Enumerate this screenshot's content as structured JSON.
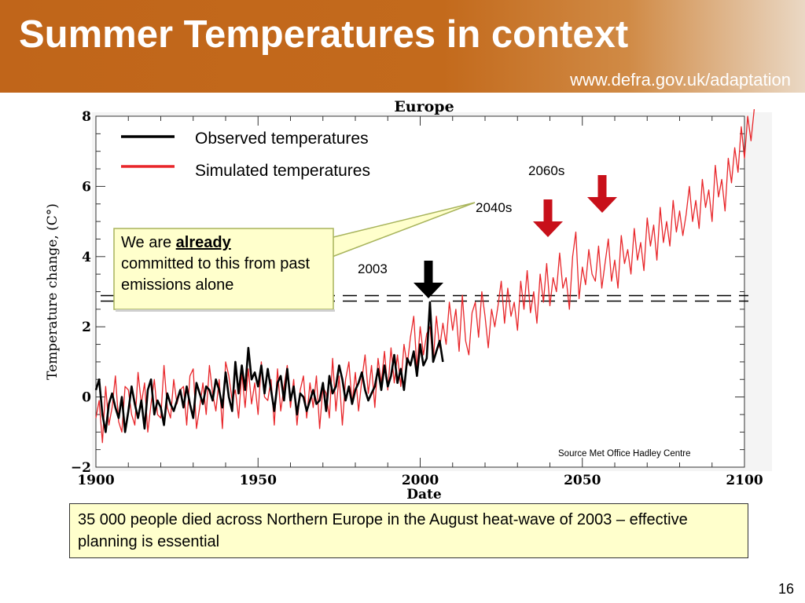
{
  "slide": {
    "title": "Summer Temperatures in context",
    "url": "www.defra.gov.uk/adaptation",
    "callout": {
      "prefix": "We are ",
      "emphasis": "already",
      "rest": "committed to this from past emissions alone"
    },
    "footer_note": "35 000 people died across Northern Europe in the August heat-wave of 2003 – effective planning is essential",
    "page_number": "16",
    "source": "Source Met Office Hadley Centre"
  },
  "colors": {
    "observed": "#000000",
    "simulated": "#e8262a",
    "arrow_red": "#c8101a",
    "header": "#c0651a"
  },
  "chart_data": {
    "type": "line",
    "title": "Europe",
    "xlabel": "Date",
    "ylabel": "Temperature change, (C°)",
    "xlim": [
      1900,
      2100
    ],
    "ylim": [
      -2,
      8
    ],
    "x_ticks": [
      1900,
      1950,
      2000,
      2050,
      2100
    ],
    "y_ticks": [
      -2,
      0,
      2,
      4,
      6,
      8
    ],
    "reference_line": {
      "style": "dashed",
      "y": 2.8
    },
    "legend": [
      "Observed temperatures",
      "Simulated temperatures"
    ],
    "annotations": [
      {
        "label": "2003",
        "x": 2003,
        "y": 2.7,
        "arrow": "black"
      },
      {
        "label": "2040s",
        "x": 2041,
        "y": 4.6,
        "arrow": "red"
      },
      {
        "label": "2060s",
        "x": 2057,
        "y": 5.6,
        "arrow": "red"
      }
    ],
    "series": [
      {
        "name": "Observed temperatures",
        "x_start": 1900,
        "x_step": 1,
        "values": [
          0.2,
          0.5,
          -0.5,
          -1.0,
          -0.2,
          0.1,
          -0.3,
          -0.6,
          0.0,
          -1.0,
          -0.4,
          0.3,
          -0.2,
          -0.6,
          -0.1,
          -0.9,
          0.2,
          0.5,
          -0.5,
          -0.1,
          -0.3,
          -0.8,
          0.1,
          -0.2,
          -0.4,
          -0.1,
          0.2,
          -0.3,
          0.3,
          -0.2,
          -0.6,
          0.4,
          0.1,
          -0.2,
          0.3,
          0.2,
          -0.1,
          0.5,
          0.2,
          -0.3,
          0.7,
          0.0,
          -0.4,
          1.0,
          0.1,
          0.9,
          0.2,
          1.4,
          0.5,
          0.7,
          0.3,
          0.9,
          0.1,
          0.8,
          0.2,
          -0.4,
          0.4,
          0.6,
          -0.1,
          0.8,
          -0.1,
          0.3,
          -0.5,
          0.1,
          0.0,
          -0.4,
          -0.1,
          0.2,
          -0.2,
          -0.1,
          0.4,
          -0.4,
          0.6,
          0.1,
          0.3,
          0.9,
          0.5,
          -0.1,
          0.3,
          -0.2,
          0.2,
          0.4,
          0.7,
          0.2,
          -0.1,
          0.1,
          0.3,
          0.8,
          0.2,
          0.9,
          0.3,
          0.6,
          1.2,
          0.4,
          0.8,
          0.2,
          1.1,
          0.9,
          1.3,
          0.6,
          1.5,
          0.9,
          1.1,
          2.7,
          1.0,
          1.3,
          1.6,
          1.0
        ],
        "color": "#000000"
      },
      {
        "name": "Simulated temperatures",
        "x_start": 1900,
        "x_step": 1,
        "values": [
          -0.6,
          -0.1,
          -1.3,
          0.3,
          -0.8,
          -0.3,
          0.6,
          -0.7,
          -1.0,
          0.3,
          0.2,
          -0.5,
          -0.8,
          0.7,
          -0.2,
          0.4,
          -1.0,
          -0.2,
          0.5,
          -0.5,
          -0.6,
          0.9,
          -0.3,
          -0.6,
          0.5,
          -0.2,
          0.2,
          0.3,
          -0.8,
          0.6,
          0.8,
          -0.9,
          -0.3,
          0.4,
          -0.5,
          0.9,
          0.1,
          -0.4,
          0.5,
          -0.9,
          1.0,
          0.6,
          -0.1,
          0.2,
          -0.6,
          0.7,
          -0.3,
          0.8,
          -0.2,
          0.4,
          -0.5,
          1.0,
          0.0,
          -0.1,
          0.5,
          -0.8,
          0.8,
          -0.4,
          0.3,
          0.9,
          -0.3,
          0.5,
          -0.8,
          0.2,
          0.6,
          -0.6,
          0.4,
          -0.3,
          0.6,
          -0.9,
          0.3,
          0.1,
          -0.6,
          1.1,
          -0.4,
          0.6,
          -0.8,
          0.5,
          1.0,
          -0.2,
          0.7,
          -0.4,
          0.5,
          1.2,
          0.1,
          0.9,
          -0.3,
          1.1,
          0.4,
          1.3,
          0.2,
          1.4,
          0.4,
          1.2,
          0.3,
          1.5,
          0.9,
          1.7,
          2.3,
          0.8,
          2.0,
          1.2,
          1.8,
          2.0,
          1.0,
          2.3,
          1.4,
          2.1,
          1.5,
          2.7,
          1.9,
          2.5,
          1.3,
          2.9,
          1.6,
          1.2,
          2.4,
          2.7,
          1.7,
          3.0,
          2.3,
          1.4,
          2.5,
          2.0,
          2.6,
          3.3,
          2.1,
          3.1,
          2.3,
          2.7,
          1.9,
          3.3,
          2.5,
          3.6,
          2.4,
          3.0,
          2.1,
          3.5,
          2.7,
          3.8,
          2.6,
          3.4,
          3.0,
          4.1,
          3.1,
          3.4,
          2.5,
          4.0,
          4.7,
          2.8,
          3.7,
          3.2,
          4.2,
          3.5,
          3.3,
          4.3,
          3.1,
          3.8,
          4.5,
          3.3,
          3.9,
          3.1,
          4.6,
          3.8,
          4.2,
          3.5,
          4.8,
          3.9,
          4.4,
          3.6,
          5.1,
          4.3,
          4.9,
          3.9,
          5.4,
          4.4,
          5.0,
          4.3,
          5.6,
          4.7,
          5.3,
          4.6,
          5.2,
          6.0,
          5.0,
          5.6,
          4.8,
          6.2,
          5.4,
          5.9,
          5.0,
          6.6,
          5.7,
          6.2,
          5.3,
          6.8,
          6.1,
          7.1,
          6.4,
          7.7,
          6.8,
          8.0,
          7.3,
          8.2
        ],
        "color": "#e8262a"
      }
    ]
  }
}
